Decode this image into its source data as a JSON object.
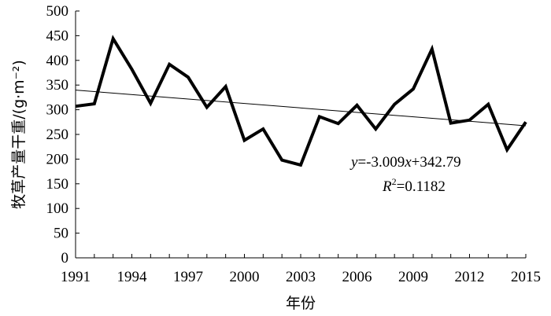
{
  "chart_data": {
    "type": "line",
    "title": "",
    "xlabel": "年份",
    "ylabel": "牧草产量干重/(g·m⁻²)",
    "x": [
      1991,
      1992,
      1993,
      1994,
      1995,
      1996,
      1997,
      1998,
      1999,
      2000,
      2001,
      2002,
      2003,
      2004,
      2005,
      2006,
      2007,
      2008,
      2009,
      2010,
      2011,
      2012,
      2013,
      2014,
      2015
    ],
    "series": [
      {
        "values": [
          307,
          312,
          444,
          382,
          313,
          392,
          366,
          305,
          347,
          238,
          261,
          198,
          188,
          286,
          272,
          309,
          261,
          311,
          342,
          423,
          273,
          279,
          311,
          219,
          275
        ],
        "color": "#000000"
      }
    ],
    "trendline": {
      "equation": "y=-3.009x+342.79",
      "r2": "R2=0.1182",
      "start": 339.78,
      "end": 267.56
    },
    "x_ticks": [
      "1991",
      "1994",
      "1997",
      "2000",
      "2003",
      "2006",
      "2009",
      "2012",
      "2015"
    ],
    "y_ticks": [
      "0",
      "50",
      "100",
      "150",
      "200",
      "250",
      "300",
      "350",
      "400",
      "450",
      "500"
    ],
    "xlim": [
      1991,
      2015
    ],
    "ylim": [
      0,
      500
    ],
    "grid": false,
    "legend": "none"
  }
}
